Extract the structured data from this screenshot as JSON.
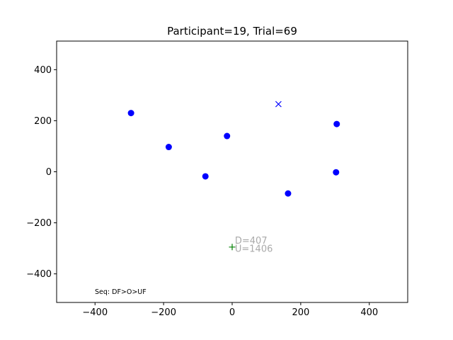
{
  "chart_data": {
    "type": "scatter",
    "title": "Participant=19, Trial=69",
    "xlabel": "",
    "ylabel": "",
    "xlim": [
      -512,
      512
    ],
    "ylim": [
      -512,
      512
    ],
    "xticks": [
      -400,
      -200,
      0,
      200,
      400
    ],
    "yticks": [
      -400,
      -200,
      0,
      200,
      400
    ],
    "grid": false,
    "series": [
      {
        "marker": "circle",
        "color": "#0000ff",
        "points": [
          {
            "x": -295,
            "y": 230
          },
          {
            "x": -185,
            "y": 97
          },
          {
            "x": -78,
            "y": -18
          },
          {
            "x": -15,
            "y": 140
          },
          {
            "x": 163,
            "y": -85
          },
          {
            "x": 305,
            "y": 187
          },
          {
            "x": 303,
            "y": -2
          }
        ]
      },
      {
        "marker": "x",
        "color": "#0000ff",
        "points": [
          {
            "x": 135,
            "y": 265
          }
        ]
      },
      {
        "marker": "plus",
        "color": "#008000",
        "points": [
          {
            "x": 0,
            "y": -295
          }
        ]
      }
    ],
    "annotations": [
      {
        "text": "D=407",
        "x": 8,
        "y": -268,
        "color": "#aaaaaa"
      },
      {
        "text": "U=1406",
        "x": 8,
        "y": -300,
        "color": "#aaaaaa"
      }
    ],
    "footer_text": "Seq: DF>O>UF"
  }
}
